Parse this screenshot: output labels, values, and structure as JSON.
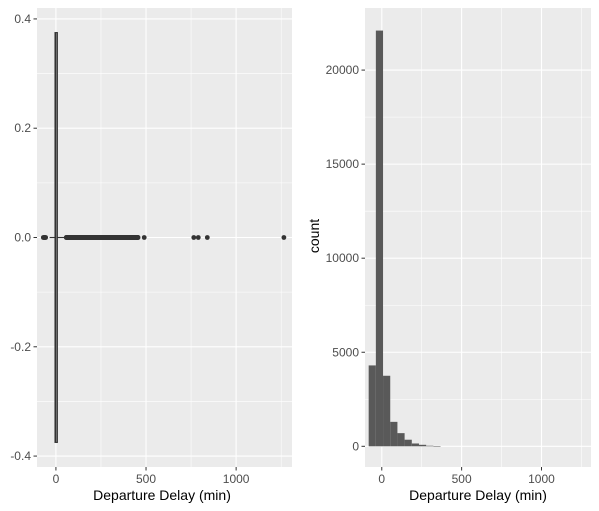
{
  "chart_data": [
    {
      "type": "boxplot",
      "orientation": "horizontal",
      "xlabel": "Departure Delay (min)",
      "ylabel": "",
      "xlim": [
        -105,
        1310
      ],
      "ylim": [
        -0.42,
        0.42
      ],
      "xticks": [
        0,
        500,
        1000
      ],
      "xtick_labels": [
        "0",
        "500",
        "1000"
      ],
      "yticks": [
        -0.4,
        -0.2,
        0.0,
        0.2,
        0.4
      ],
      "ytick_labels": [
        "-0.4",
        "-0.2",
        "0.0",
        "0.2",
        "0.4"
      ],
      "box": {
        "q1": -5,
        "median": -2,
        "q3": 8,
        "whisker_low": -35,
        "whisker_high": 50,
        "y_low": -0.375,
        "y_high": 0.375
      },
      "outliers": [
        -70,
        -66,
        -63,
        -60,
        -57,
        58,
        420,
        435,
        455,
        490,
        765,
        790,
        840,
        1265
      ],
      "outlier_band": [
        58,
        455
      ],
      "grid": true
    },
    {
      "type": "histogram",
      "xlabel": "Departure Delay (min)",
      "ylabel": "count",
      "xlim": [
        -105,
        1310
      ],
      "ylim": [
        -1100,
        23300
      ],
      "xticks": [
        0,
        500,
        1000
      ],
      "xtick_labels": [
        "0",
        "500",
        "1000"
      ],
      "yticks": [
        0,
        5000,
        10000,
        15000,
        20000
      ],
      "ytick_labels": [
        "0",
        "5000",
        "10000",
        "15000",
        "20000"
      ],
      "bin_width": 45,
      "bins": [
        {
          "x0": -82,
          "x1": -37,
          "count": 4300
        },
        {
          "x0": -37,
          "x1": 8,
          "count": 22100
        },
        {
          "x0": 8,
          "x1": 53,
          "count": 3750
        },
        {
          "x0": 53,
          "x1": 98,
          "count": 1300
        },
        {
          "x0": 98,
          "x1": 143,
          "count": 700
        },
        {
          "x0": 143,
          "x1": 188,
          "count": 350
        },
        {
          "x0": 188,
          "x1": 233,
          "count": 150
        },
        {
          "x0": 233,
          "x1": 278,
          "count": 80
        },
        {
          "x0": 278,
          "x1": 323,
          "count": 30
        },
        {
          "x0": 323,
          "x1": 368,
          "count": 15
        }
      ],
      "grid": true
    }
  ]
}
